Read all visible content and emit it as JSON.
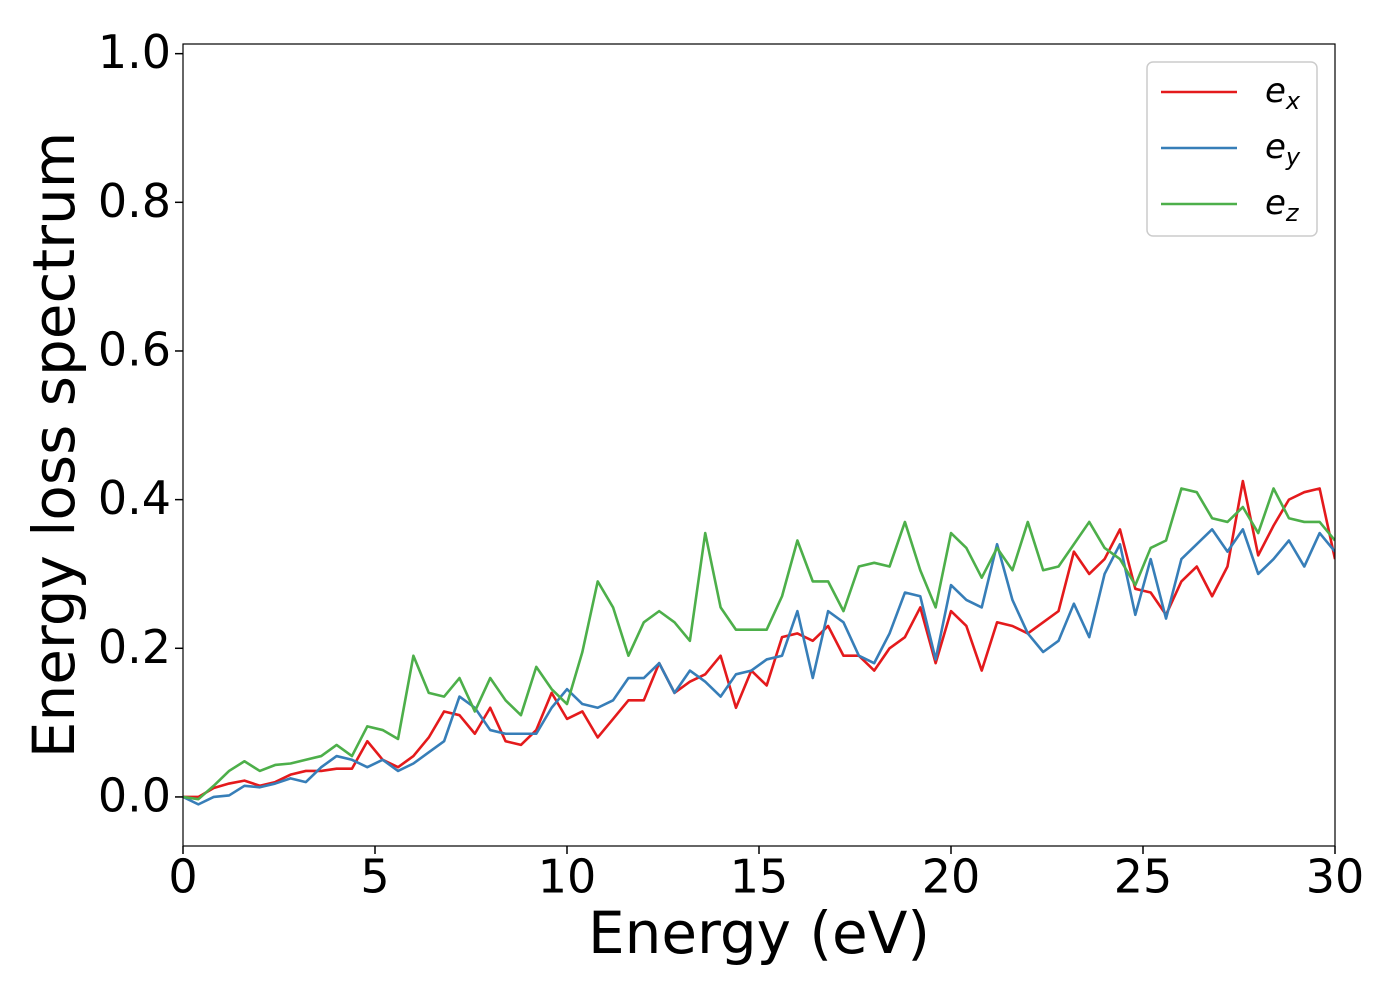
{
  "chart_data": {
    "type": "line",
    "xlabel": "Energy (eV)",
    "ylabel": "Energy loss spectrum",
    "x": [
      0,
      0.4,
      0.8,
      1.2,
      1.6,
      2.0,
      2.4,
      2.8,
      3.2,
      3.6,
      4.0,
      4.4,
      4.8,
      5.2,
      5.6,
      6.0,
      6.4,
      6.8,
      7.2,
      7.6,
      8.0,
      8.4,
      8.8,
      9.2,
      9.6,
      10.0,
      10.4,
      10.8,
      11.2,
      11.6,
      12.0,
      12.4,
      12.8,
      13.2,
      13.6,
      14.0,
      14.4,
      14.8,
      15.2,
      15.6,
      16.0,
      16.4,
      16.8,
      17.2,
      17.6,
      18.0,
      18.4,
      18.8,
      19.2,
      19.6,
      20.0,
      20.4,
      20.8,
      21.2,
      21.6,
      22.0,
      22.4,
      22.8,
      23.2,
      23.6,
      24.0,
      24.4,
      24.8,
      25.2,
      25.6,
      26.0,
      26.4,
      26.8,
      27.2,
      27.6,
      28.0,
      28.4,
      28.8,
      29.2,
      29.6,
      30.0
    ],
    "series": [
      {
        "name": "ex",
        "color": "#e41a1c",
        "values": [
          0,
          0,
          0.012,
          0.018,
          0.022,
          0.015,
          0.02,
          0.03,
          0.035,
          0.035,
          0.038,
          0.038,
          0.075,
          0.05,
          0.04,
          0.055,
          0.08,
          0.115,
          0.11,
          0.085,
          0.12,
          0.075,
          0.07,
          0.09,
          0.14,
          0.105,
          0.115,
          0.08,
          0.105,
          0.13,
          0.13,
          0.18,
          0.14,
          0.155,
          0.165,
          0.19,
          0.12,
          0.17,
          0.15,
          0.215,
          0.22,
          0.21,
          0.23,
          0.19,
          0.19,
          0.17,
          0.2,
          0.215,
          0.255,
          0.18,
          0.25,
          0.23,
          0.17,
          0.235,
          0.23,
          0.22,
          0.235,
          0.25,
          0.33,
          0.3,
          0.32,
          0.36,
          0.28,
          0.275,
          0.245,
          0.29,
          0.31,
          0.27,
          0.31,
          0.425,
          0.325,
          0.365,
          0.4,
          0.41,
          0.415,
          0.32
        ]
      },
      {
        "name": "ey",
        "color": "#377eb8",
        "values": [
          0,
          -0.01,
          0,
          0.002,
          0.015,
          0.013,
          0.018,
          0.025,
          0.02,
          0.04,
          0.055,
          0.05,
          0.04,
          0.05,
          0.035,
          0.045,
          0.06,
          0.075,
          0.135,
          0.12,
          0.09,
          0.085,
          0.085,
          0.085,
          0.12,
          0.145,
          0.125,
          0.12,
          0.13,
          0.16,
          0.16,
          0.18,
          0.14,
          0.17,
          0.155,
          0.135,
          0.165,
          0.17,
          0.185,
          0.19,
          0.25,
          0.16,
          0.25,
          0.235,
          0.19,
          0.18,
          0.22,
          0.275,
          0.27,
          0.185,
          0.285,
          0.265,
          0.255,
          0.34,
          0.265,
          0.22,
          0.195,
          0.21,
          0.26,
          0.215,
          0.3,
          0.34,
          0.245,
          0.32,
          0.24,
          0.32,
          0.34,
          0.36,
          0.33,
          0.36,
          0.3,
          0.32,
          0.345,
          0.31,
          0.355,
          0.33
        ]
      },
      {
        "name": "ez",
        "color": "#4daf4a",
        "values": [
          0,
          -0.003,
          0.015,
          0.035,
          0.048,
          0.035,
          0.043,
          0.045,
          0.05,
          0.055,
          0.07,
          0.055,
          0.095,
          0.09,
          0.078,
          0.19,
          0.14,
          0.135,
          0.16,
          0.115,
          0.16,
          0.13,
          0.11,
          0.175,
          0.145,
          0.125,
          0.195,
          0.29,
          0.255,
          0.19,
          0.235,
          0.25,
          0.235,
          0.21,
          0.355,
          0.255,
          0.225,
          0.225,
          0.225,
          0.27,
          0.345,
          0.29,
          0.29,
          0.25,
          0.31,
          0.315,
          0.31,
          0.37,
          0.305,
          0.255,
          0.355,
          0.335,
          0.295,
          0.335,
          0.305,
          0.37,
          0.305,
          0.31,
          0.34,
          0.37,
          0.335,
          0.32,
          0.285,
          0.335,
          0.345,
          0.415,
          0.41,
          0.375,
          0.37,
          0.39,
          0.355,
          0.415,
          0.375,
          0.37,
          0.37,
          0.345
        ]
      }
    ],
    "xlim": [
      0,
      30
    ],
    "ylim": [
      -0.066,
      1.013
    ],
    "xticks": [
      0,
      5,
      10,
      15,
      20,
      25,
      30
    ],
    "yticks": [
      {
        "value": 0,
        "label": "0.0"
      },
      {
        "value": 0.2,
        "label": "0.2"
      },
      {
        "value": 0.4,
        "label": "0.4"
      },
      {
        "value": 0.6,
        "label": "0.6"
      },
      {
        "value": 0.8,
        "label": "0.8"
      },
      {
        "value": 1,
        "label": "1.0"
      }
    ],
    "legend": "upper right",
    "grid": false
  }
}
